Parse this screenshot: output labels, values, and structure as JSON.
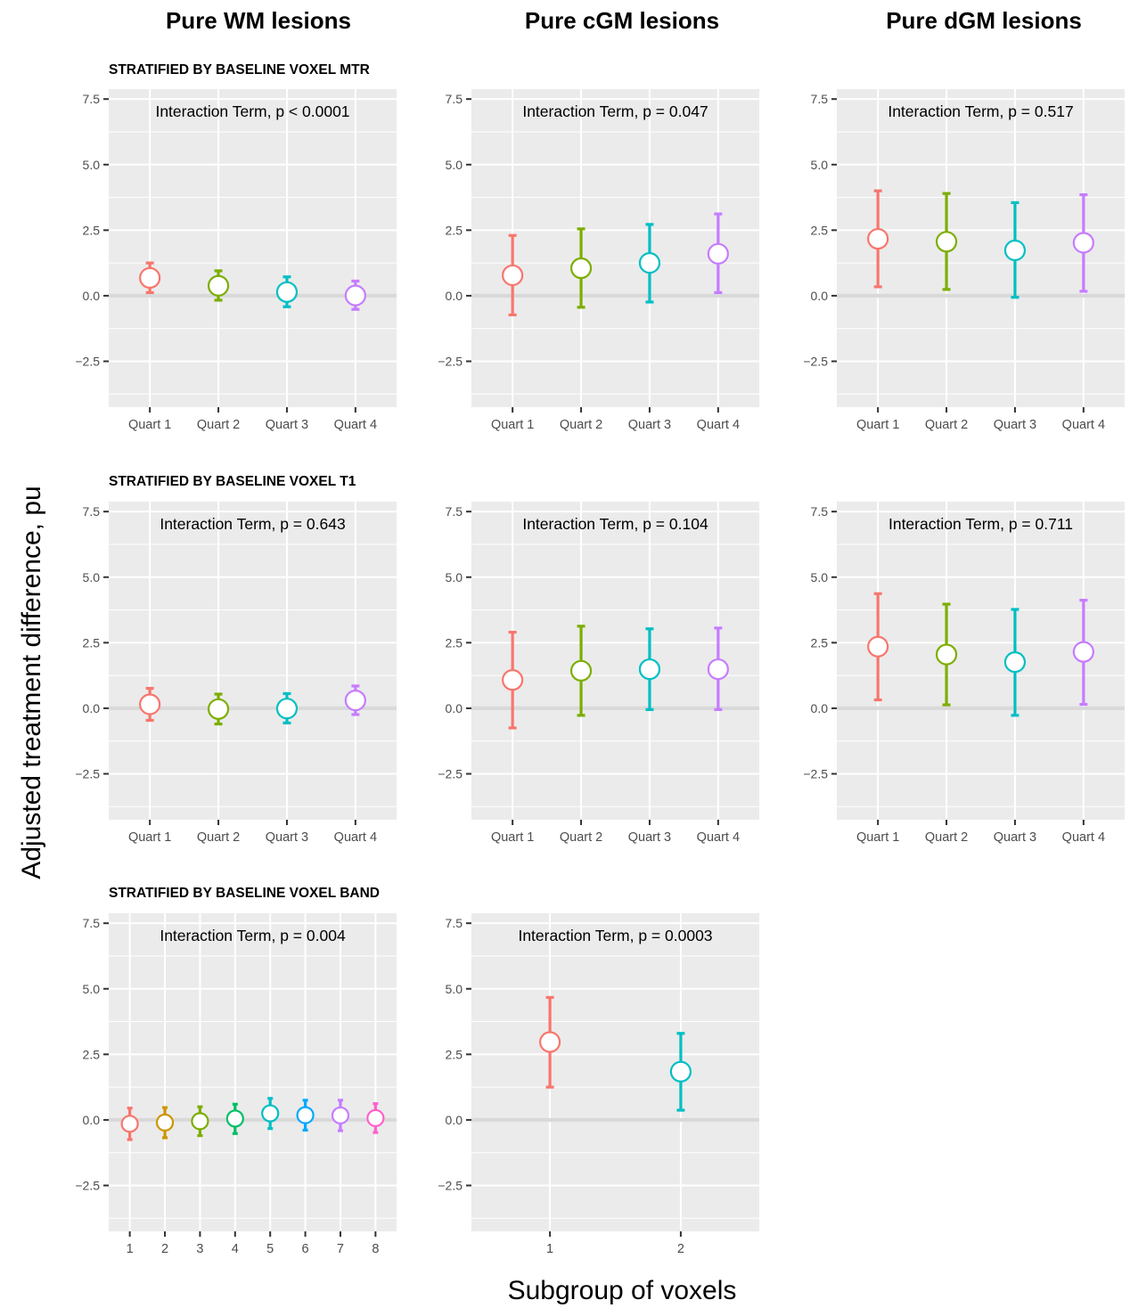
{
  "column_titles": [
    "Pure WM lesions",
    "Pure cGM lesions",
    "Pure dGM lesions"
  ],
  "row_titles": [
    "STRATIFIED BY BASELINE VOXEL MTR",
    "STRATIFIED BY BASELINE VOXEL T1",
    "STRATIFIED BY BASELINE VOXEL BAND"
  ],
  "ylabel": "Adjusted treatment difference, pu",
  "xlabel": "Subgroup of voxels",
  "colors": {
    "q1": "#F8766D",
    "q2": "#7CAE00",
    "q3": "#00BFC4",
    "q4": "#C77CFF",
    "b1": "#F8766D",
    "b2": "#CD9600",
    "b3": "#7CAE00",
    "b4": "#00BE67",
    "b5": "#00BFC4",
    "b6": "#00A9FF",
    "b7": "#C77CFF",
    "b8": "#FF61CC",
    "panel_bg": "#EBEBEB",
    "grid": "#FFFFFF",
    "zero_band": "#D9D9D9"
  },
  "chart_data": [
    {
      "type": "scatter",
      "row": 0,
      "col": 0,
      "annotation": "Interaction Term, p < 0.0001",
      "categories": [
        "Quart 1",
        "Quart 2",
        "Quart 3",
        "Quart 4"
      ],
      "ylim": [
        -4.2,
        7.5
      ],
      "yticks": [
        "7.5",
        "5.0",
        "2.5",
        "0.0",
        "−2.5"
      ],
      "values": [
        0.68,
        0.38,
        0.14,
        0.01
      ],
      "lower": [
        0.12,
        -0.17,
        -0.42,
        -0.52
      ],
      "upper": [
        1.25,
        0.95,
        0.72,
        0.56
      ],
      "colors": [
        "q1",
        "q2",
        "q3",
        "q4"
      ]
    },
    {
      "type": "scatter",
      "row": 0,
      "col": 1,
      "annotation": "Interaction Term, p = 0.047",
      "categories": [
        "Quart 1",
        "Quart 2",
        "Quart 3",
        "Quart 4"
      ],
      "ylim": [
        -4.2,
        7.5
      ],
      "yticks": [
        "7.5",
        "5.0",
        "2.5",
        "0.0",
        "−2.5"
      ],
      "values": [
        0.78,
        1.05,
        1.25,
        1.6
      ],
      "lower": [
        -0.73,
        -0.44,
        -0.24,
        0.12
      ],
      "upper": [
        2.3,
        2.55,
        2.72,
        3.12
      ],
      "colors": [
        "q1",
        "q2",
        "q3",
        "q4"
      ]
    },
    {
      "type": "scatter",
      "row": 0,
      "col": 2,
      "annotation": "Interaction Term, p = 0.517",
      "categories": [
        "Quart 1",
        "Quart 2",
        "Quart 3",
        "Quart 4"
      ],
      "ylim": [
        -4.2,
        7.5
      ],
      "yticks": [
        "7.5",
        "5.0",
        "2.5",
        "0.0",
        "−2.5"
      ],
      "values": [
        2.17,
        2.06,
        1.73,
        2.02
      ],
      "lower": [
        0.34,
        0.24,
        -0.06,
        0.17
      ],
      "upper": [
        4.0,
        3.9,
        3.55,
        3.85
      ],
      "colors": [
        "q1",
        "q2",
        "q3",
        "q4"
      ]
    },
    {
      "type": "scatter",
      "row": 1,
      "col": 0,
      "annotation": "Interaction Term, p = 0.643",
      "categories": [
        "Quart 1",
        "Quart 2",
        "Quart 3",
        "Quart 4"
      ],
      "ylim": [
        -4.2,
        7.5
      ],
      "yticks": [
        "7.5",
        "5.0",
        "2.5",
        "0.0",
        "−2.5"
      ],
      "values": [
        0.15,
        -0.03,
        -0.01,
        0.3
      ],
      "lower": [
        -0.46,
        -0.6,
        -0.56,
        -0.24
      ],
      "upper": [
        0.76,
        0.54,
        0.56,
        0.85
      ],
      "colors": [
        "q1",
        "q2",
        "q3",
        "q4"
      ]
    },
    {
      "type": "scatter",
      "row": 1,
      "col": 1,
      "annotation": "Interaction Term, p = 0.104",
      "categories": [
        "Quart 1",
        "Quart 2",
        "Quart 3",
        "Quart 4"
      ],
      "ylim": [
        -4.2,
        7.5
      ],
      "yticks": [
        "7.5",
        "5.0",
        "2.5",
        "0.0",
        "−2.5"
      ],
      "values": [
        1.08,
        1.43,
        1.49,
        1.49
      ],
      "lower": [
        -0.75,
        -0.27,
        -0.05,
        -0.05
      ],
      "upper": [
        2.9,
        3.13,
        3.03,
        3.06
      ],
      "colors": [
        "q1",
        "q2",
        "q3",
        "q4"
      ]
    },
    {
      "type": "scatter",
      "row": 1,
      "col": 2,
      "annotation": "Interaction Term, p = 0.711",
      "categories": [
        "Quart 1",
        "Quart 2",
        "Quart 3",
        "Quart 4"
      ],
      "ylim": [
        -4.2,
        7.5
      ],
      "yticks": [
        "7.5",
        "5.0",
        "2.5",
        "0.0",
        "−2.5"
      ],
      "values": [
        2.35,
        2.05,
        1.76,
        2.15
      ],
      "lower": [
        0.32,
        0.13,
        -0.27,
        0.15
      ],
      "upper": [
        4.37,
        3.97,
        3.77,
        4.12
      ],
      "colors": [
        "q1",
        "q2",
        "q3",
        "q4"
      ]
    },
    {
      "type": "scatter",
      "row": 2,
      "col": 0,
      "annotation": "Interaction Term, p = 0.004",
      "categories": [
        "1",
        "2",
        "3",
        "4",
        "5",
        "6",
        "7",
        "8"
      ],
      "ylim": [
        -4.2,
        7.5
      ],
      "yticks": [
        "7.5",
        "5.0",
        "2.5",
        "0.0",
        "−2.5"
      ],
      "values": [
        -0.15,
        -0.1,
        -0.05,
        0.05,
        0.25,
        0.18,
        0.17,
        0.07
      ],
      "lower": [
        -0.75,
        -0.68,
        -0.6,
        -0.52,
        -0.33,
        -0.39,
        -0.41,
        -0.48
      ],
      "upper": [
        0.45,
        0.47,
        0.5,
        0.6,
        0.82,
        0.75,
        0.75,
        0.62
      ],
      "colors": [
        "b1",
        "b2",
        "b3",
        "b4",
        "b5",
        "b6",
        "b7",
        "b8"
      ]
    },
    {
      "type": "scatter",
      "row": 2,
      "col": 1,
      "annotation": "Interaction Term, p = 0.0003",
      "categories": [
        "1",
        "2"
      ],
      "ylim": [
        -4.2,
        7.5
      ],
      "yticks": [
        "7.5",
        "5.0",
        "2.5",
        "0.0",
        "−2.5"
      ],
      "values": [
        2.97,
        1.84
      ],
      "lower": [
        1.25,
        0.37
      ],
      "upper": [
        4.67,
        3.3
      ],
      "colors": [
        "q1",
        "q3"
      ]
    }
  ]
}
